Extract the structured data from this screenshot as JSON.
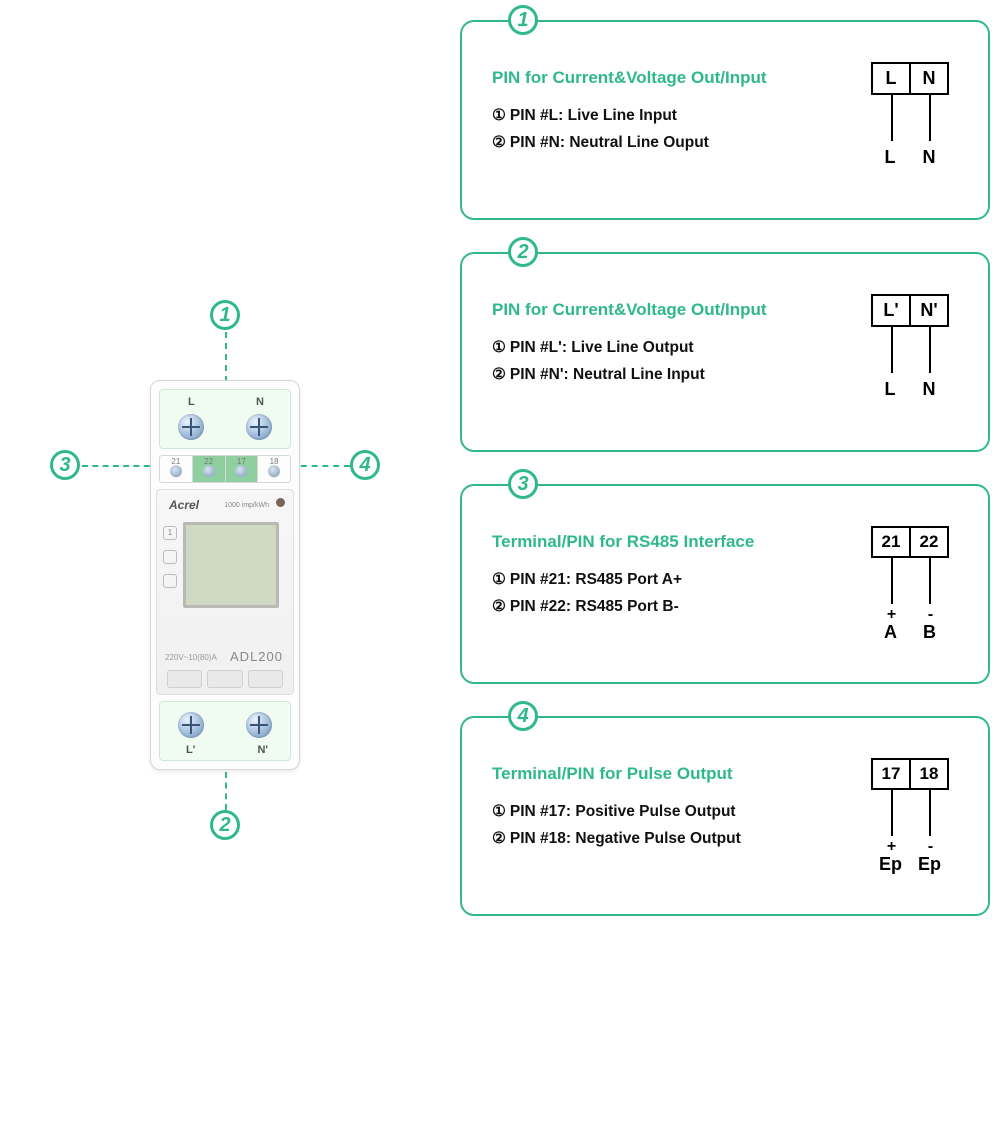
{
  "colors": {
    "accent": "#2fb98b",
    "text": "#111111",
    "background": "#ffffff"
  },
  "device": {
    "brand": "Acrel",
    "model": "ADL200",
    "imp_text": "1000 imp/kWh",
    "rating": "220V~10(80)A",
    "top_terminals": {
      "left": "L",
      "right": "N"
    },
    "bottom_terminals": {
      "left": "L'",
      "right": "N'"
    },
    "mid_terminals": [
      "21",
      "22",
      "17",
      "18"
    ]
  },
  "callouts": {
    "c1": "1",
    "c2": "2",
    "c3": "3",
    "c4": "4"
  },
  "cards": [
    {
      "num": "1",
      "title": "PIN for Current&Voltage Out/Input",
      "line1_marker": "①",
      "line1": "PIN #L: Live Line Input",
      "line2_marker": "②",
      "line2": "PIN #N: Neutral Line Ouput",
      "pins": {
        "a": "L",
        "b": "N",
        "la": "L",
        "lb": "N",
        "signs": false
      }
    },
    {
      "num": "2",
      "title": "PIN for Current&Voltage Out/Input",
      "line1_marker": "①",
      "line1": "PIN #L': Live Line Output",
      "line2_marker": "②",
      "line2": "PIN #N': Neutral Line Input",
      "pins": {
        "a": "L'",
        "b": "N'",
        "la": "L",
        "lb": "N",
        "signs": false
      }
    },
    {
      "num": "3",
      "title": "Terminal/PIN for RS485 Interface",
      "line1_marker": "①",
      "line1": "PIN #21: RS485 Port A+",
      "line2_marker": "②",
      "line2": "PIN #22: RS485 Port B-",
      "pins": {
        "a": "21",
        "b": "22",
        "la": "A",
        "lb": "B",
        "signs": true,
        "sa": "+",
        "sb": "-"
      }
    },
    {
      "num": "4",
      "title": "Terminal/PIN for Pulse Output",
      "line1_marker": "①",
      "line1": "PIN #17: Positive Pulse Output",
      "line2_marker": "②",
      "line2": "PIN #18: Negative Pulse Output",
      "pins": {
        "a": "17",
        "b": "18",
        "la": "Ep",
        "lb": "Ep",
        "signs": true,
        "sa": "+",
        "sb": "-"
      }
    }
  ]
}
